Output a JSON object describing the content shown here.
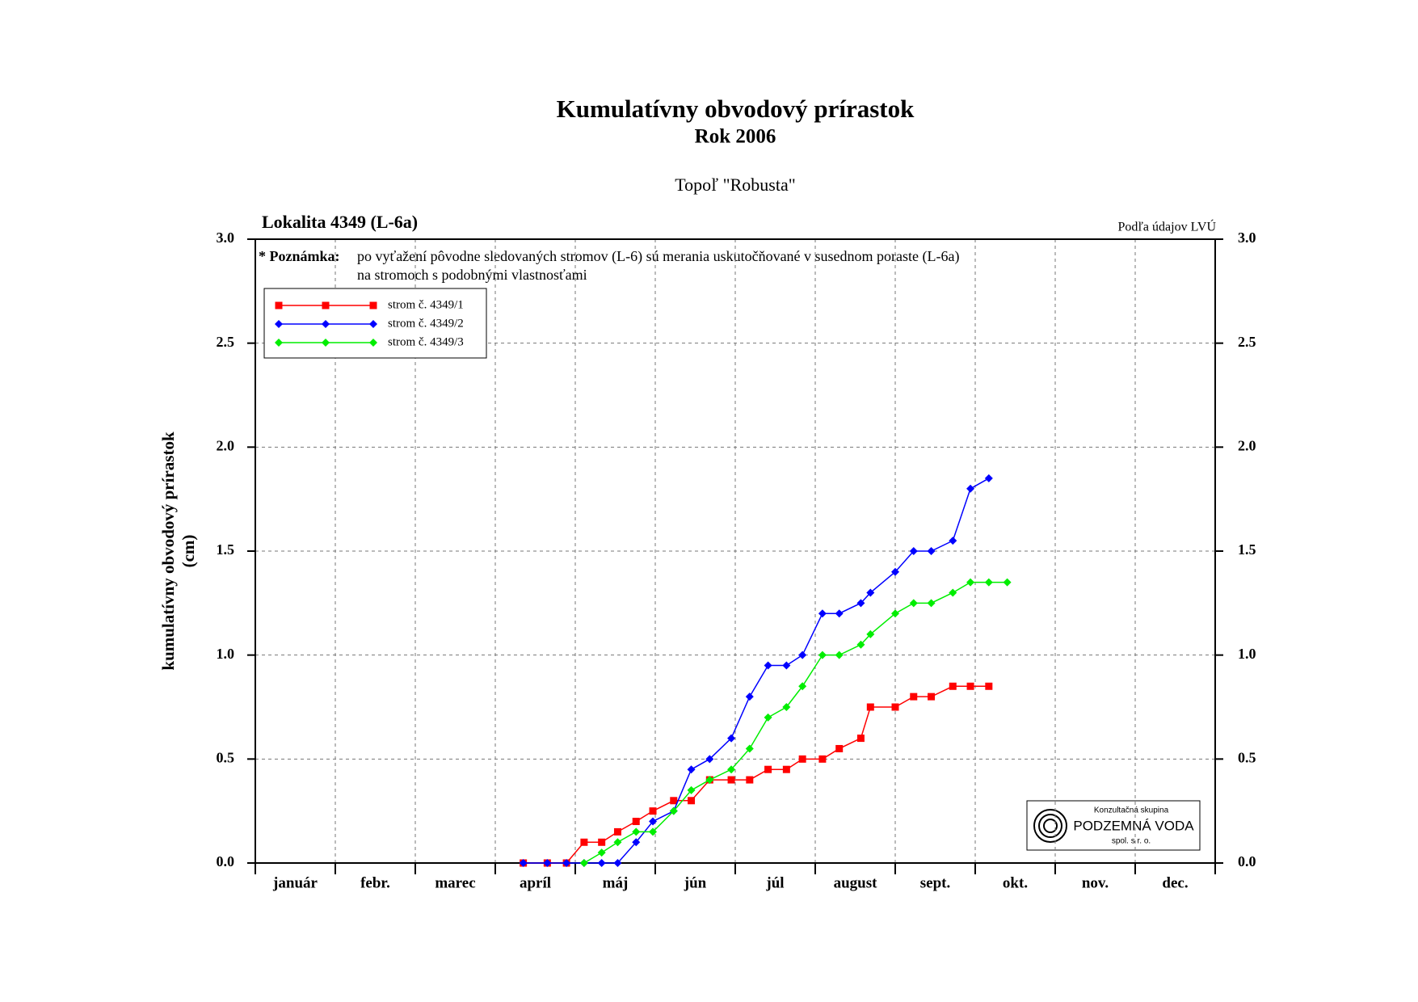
{
  "chart_data": {
    "type": "line",
    "title": "Kumulatívny obvodový prírastok",
    "subtitle": "Rok 2006",
    "subtitle2": "Topoľ \"Robusta\"",
    "location": "Lokalita 4349 (L-6a)",
    "source": "Podľa údajov LVÚ",
    "note_label": "* Poznámka:",
    "note_lines": [
      "po vyťažení pôvodne sledovaných stromov (L-6) sú merania uskutočňované v susednom poraste (L-6a)",
      "na stromoch s podobnými vlastnosťami"
    ],
    "y_label": [
      "kumulatívny obvodový prírastok",
      "(cm)"
    ],
    "logo": [
      "Konzultačná skupina",
      "PODZEMNÁ VODA",
      "spol. s r. o."
    ],
    "categories": [
      "január",
      "febr.",
      "marec",
      "apríl",
      "máj",
      "jún",
      "júl",
      "august",
      "sept.",
      "okt.",
      "nov.",
      "dec."
    ],
    "xlim": [
      0,
      12
    ],
    "ylim": [
      0,
      3
    ],
    "yticks": [
      {
        "value": 0,
        "label": "0.0"
      },
      {
        "value": 0.5,
        "label": "0.5"
      },
      {
        "value": 1,
        "label": "1.0"
      },
      {
        "value": 1.5,
        "label": "1.5"
      },
      {
        "value": 2,
        "label": "2.0"
      },
      {
        "value": 2.5,
        "label": "2.5"
      },
      {
        "value": 3,
        "label": "3.0"
      }
    ],
    "grid": true,
    "series": [
      {
        "name": "strom č. 4349/1",
        "color": "#ff0000",
        "marker": "square",
        "x": [
          3.35,
          3.65,
          3.89,
          4.11,
          4.33,
          4.53,
          4.76,
          4.97,
          5.23,
          5.45,
          5.68,
          5.95,
          6.18,
          6.41,
          6.64,
          6.84,
          7.09,
          7.3,
          7.57,
          7.69,
          8.0,
          8.23,
          8.45,
          8.72,
          8.94,
          9.17
        ],
        "values": [
          0,
          0,
          0,
          0.1,
          0.1,
          0.15,
          0.2,
          0.25,
          0.3,
          0.3,
          0.4,
          0.4,
          0.4,
          0.45,
          0.45,
          0.5,
          0.5,
          0.55,
          0.6,
          0.75,
          0.75,
          0.8,
          0.8,
          0.85,
          0.85,
          0.85
        ]
      },
      {
        "name": "strom č. 4349/2",
        "color": "#0000ff",
        "marker": "diamond",
        "x": [
          3.35,
          3.65,
          3.89,
          4.11,
          4.33,
          4.53,
          4.76,
          4.97,
          5.23,
          5.45,
          5.68,
          5.95,
          6.18,
          6.41,
          6.64,
          6.84,
          7.09,
          7.3,
          7.57,
          7.69,
          8.0,
          8.23,
          8.45,
          8.72,
          8.94,
          9.17
        ],
        "values": [
          0,
          0,
          0,
          0,
          0,
          0,
          0.1,
          0.2,
          0.25,
          0.45,
          0.5,
          0.6,
          0.8,
          0.95,
          0.95,
          1.0,
          1.2,
          1.2,
          1.25,
          1.3,
          1.4,
          1.5,
          1.5,
          1.55,
          1.8,
          1.85
        ]
      },
      {
        "name": "strom č. 4349/3",
        "color": "#00ee00",
        "marker": "diamond",
        "x": [
          4.11,
          4.33,
          4.53,
          4.76,
          4.97,
          5.23,
          5.45,
          5.68,
          5.95,
          6.18,
          6.41,
          6.64,
          6.84,
          7.09,
          7.3,
          7.57,
          7.69,
          8.0,
          8.23,
          8.45,
          8.72,
          8.94,
          9.17,
          9.4
        ],
        "values": [
          0,
          0.05,
          0.1,
          0.15,
          0.15,
          0.25,
          0.35,
          0.4,
          0.45,
          0.55,
          0.7,
          0.75,
          0.85,
          1.0,
          1.0,
          1.05,
          1.1,
          1.2,
          1.25,
          1.25,
          1.3,
          1.35,
          1.35,
          1.35
        ]
      }
    ]
  }
}
